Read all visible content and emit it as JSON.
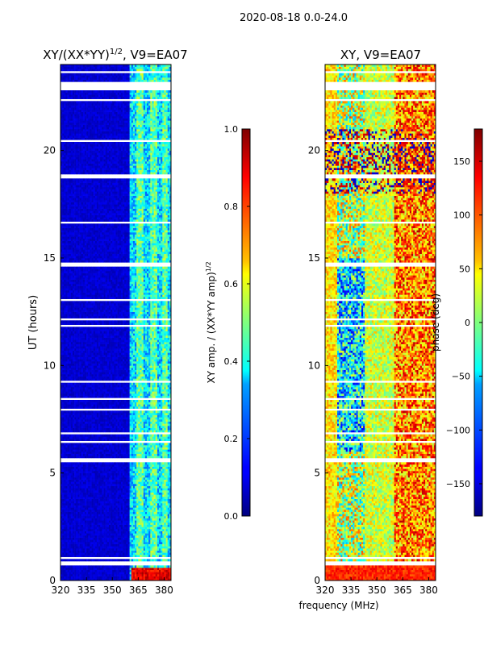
{
  "suptitle": "2020-08-18 0.0-24.0",
  "xlabel": "frequency (MHz)",
  "chart_data": [
    {
      "type": "heatmap",
      "title_main": "XY/(XX*YY)",
      "title_exp": "1/2",
      "title_suffix": ", V9=EA07",
      "ylabel": "UT (hours)",
      "xlim": [
        320,
        384
      ],
      "ylim": [
        0,
        24
      ],
      "xticks": [
        320,
        335,
        350,
        365,
        380
      ],
      "yticks": [
        0,
        5,
        10,
        15,
        20
      ],
      "colorbar": {
        "label_main": "XY amp. / (XX*YY amp)",
        "label_exp": "1/2",
        "colormap": "jet",
        "vmin": 0.0,
        "vmax": 1.0,
        "ticks": [
          "0.0",
          "0.2",
          "0.4",
          "0.6",
          "0.8",
          "1.0"
        ]
      }
    },
    {
      "type": "heatmap",
      "title": "XY, V9=EA07",
      "xlim": [
        320,
        384
      ],
      "ylim": [
        0,
        24
      ],
      "xticks": [
        320,
        335,
        350,
        365,
        380
      ],
      "yticks": [
        0,
        5,
        10,
        15,
        20
      ],
      "colorbar": {
        "label": "phase (deg)",
        "colormap": "jet",
        "vmin": -180,
        "vmax": 180,
        "ticks": [
          "−150",
          "−100",
          "−50",
          "0",
          "50",
          "100",
          "150"
        ]
      }
    }
  ],
  "colors": {
    "jet_dark_blue": "#00007f",
    "jet_blue": "#0000ff",
    "jet_cyan": "#00ffff",
    "jet_yellow": "#ffff00",
    "jet_red": "#ff0000",
    "jet_dark_red": "#7f0000"
  }
}
